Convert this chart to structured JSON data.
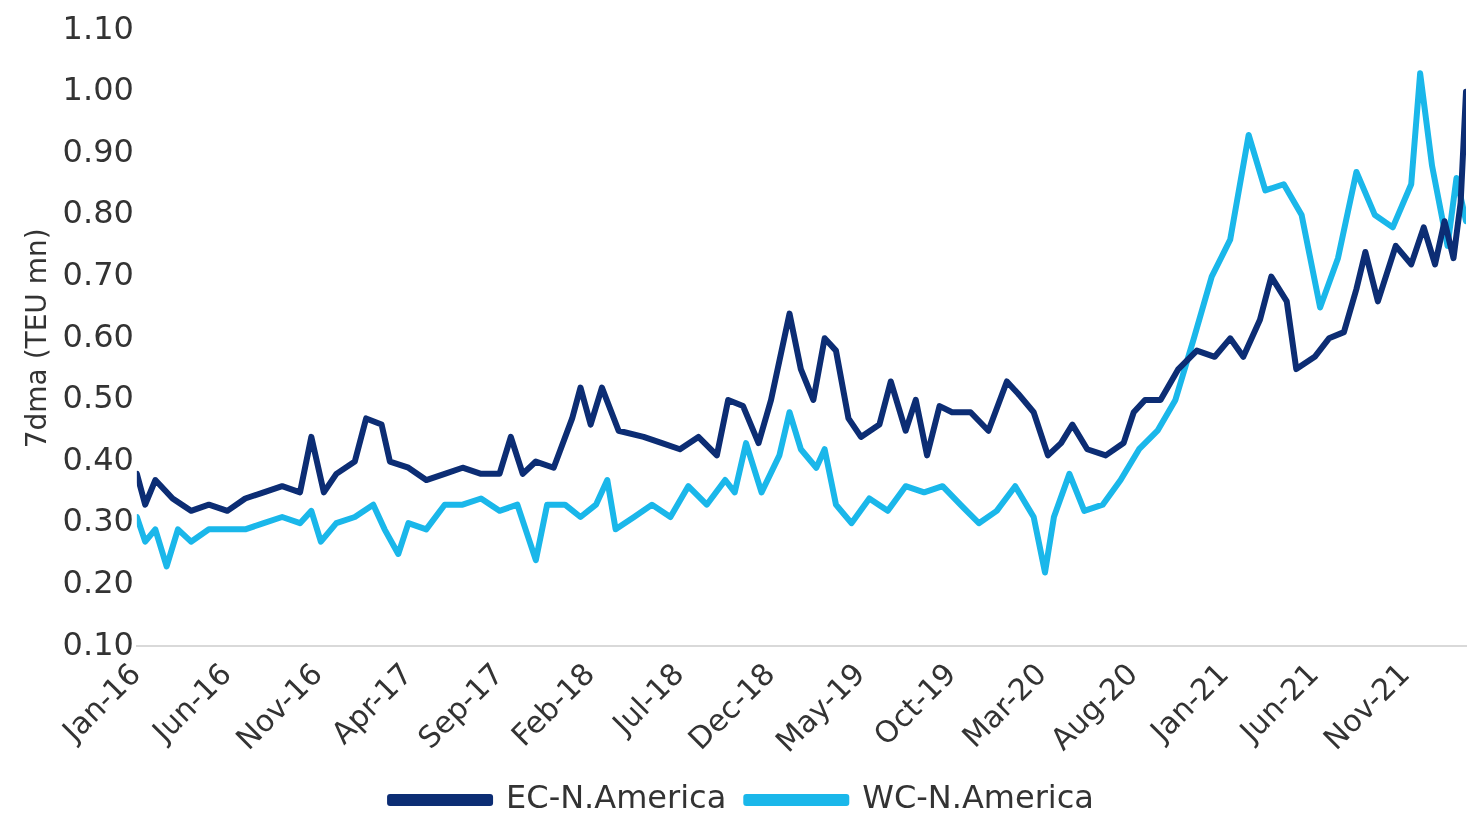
{
  "chart_data": {
    "type": "line",
    "ylabel": "7dma (TEU mn)",
    "legend": "bottom",
    "grid": false,
    "marker": "none",
    "line_style": "solid",
    "xlim": [
      "2016-01-01",
      "2022-02-10"
    ],
    "ylim": [
      0.1,
      1.1
    ],
    "yticks": [
      {
        "value": 0.1,
        "label": "0.10"
      },
      {
        "value": 0.2,
        "label": "0.20"
      },
      {
        "value": 0.3,
        "label": "0.30"
      },
      {
        "value": 0.4,
        "label": "0.40"
      },
      {
        "value": 0.5,
        "label": "0.50"
      },
      {
        "value": 0.6,
        "label": "0.60"
      },
      {
        "value": 0.7,
        "label": "0.70"
      },
      {
        "value": 0.8,
        "label": "0.80"
      },
      {
        "value": 0.9,
        "label": "0.90"
      },
      {
        "value": 1.0,
        "label": "1.00"
      },
      {
        "value": 1.1,
        "label": "1.10"
      }
    ],
    "xticks": [
      {
        "value": "2016-01",
        "label": "Jan-16"
      },
      {
        "value": "2016-06",
        "label": "Jun-16"
      },
      {
        "value": "2016-11",
        "label": "Nov-16"
      },
      {
        "value": "2017-04",
        "label": "Apr-17"
      },
      {
        "value": "2017-09",
        "label": "Sep-17"
      },
      {
        "value": "2018-02",
        "label": "Feb-18"
      },
      {
        "value": "2018-07",
        "label": "Jul-18"
      },
      {
        "value": "2018-12",
        "label": "Dec-18"
      },
      {
        "value": "2019-05",
        "label": "May-19"
      },
      {
        "value": "2019-10",
        "label": "Oct-19"
      },
      {
        "value": "2020-03",
        "label": "Mar-20"
      },
      {
        "value": "2020-08",
        "label": "Aug-20"
      },
      {
        "value": "2021-01",
        "label": "Jan-21"
      },
      {
        "value": "2021-06",
        "label": "Jun-21"
      },
      {
        "value": "2021-11",
        "label": "Nov-21"
      }
    ],
    "series": [
      {
        "name": "EC-N.America",
        "color": "#0c2d74",
        "x": [
          "2016-01-01",
          "2016-01-15",
          "2016-02-01",
          "2016-03-01",
          "2016-04-01",
          "2016-05-01",
          "2016-06-01",
          "2016-07-01",
          "2016-08-01",
          "2016-09-01",
          "2016-10-01",
          "2016-10-20",
          "2016-11-10",
          "2016-12-01",
          "2017-01-01",
          "2017-01-20",
          "2017-02-15",
          "2017-03-01",
          "2017-04-01",
          "2017-05-01",
          "2017-06-01",
          "2017-07-01",
          "2017-08-01",
          "2017-09-01",
          "2017-09-20",
          "2017-10-10",
          "2017-11-01",
          "2017-12-01",
          "2018-01-01",
          "2018-01-15",
          "2018-02-01",
          "2018-02-20",
          "2018-03-20",
          "2018-05-01",
          "2018-06-01",
          "2018-07-01",
          "2018-08-01",
          "2018-09-01",
          "2018-09-20",
          "2018-10-15",
          "2018-11-10",
          "2018-12-01",
          "2019-01-01",
          "2019-01-20",
          "2019-02-10",
          "2019-03-01",
          "2019-03-20",
          "2019-04-10",
          "2019-05-01",
          "2019-06-01",
          "2019-06-20",
          "2019-07-15",
          "2019-08-01",
          "2019-08-20",
          "2019-09-10",
          "2019-10-01",
          "2019-11-01",
          "2019-12-01",
          "2020-01-01",
          "2020-01-20",
          "2020-02-15",
          "2020-03-10",
          "2020-04-01",
          "2020-04-20",
          "2020-05-15",
          "2020-06-15",
          "2020-07-15",
          "2020-08-01",
          "2020-08-20",
          "2020-09-15",
          "2020-10-15",
          "2020-11-15",
          "2020-12-15",
          "2021-01-10",
          "2021-02-01",
          "2021-03-01",
          "2021-03-20",
          "2021-04-15",
          "2021-05-01",
          "2021-06-01",
          "2021-06-25",
          "2021-07-20",
          "2021-08-10",
          "2021-08-25",
          "2021-09-15",
          "2021-10-15",
          "2021-11-10",
          "2021-12-01",
          "2021-12-20",
          "2022-01-05",
          "2022-01-20",
          "2022-02-01",
          "2022-02-10"
        ],
        "values": [
          0.38,
          0.33,
          0.37,
          0.34,
          0.32,
          0.33,
          0.32,
          0.34,
          0.35,
          0.36,
          0.35,
          0.44,
          0.35,
          0.38,
          0.4,
          0.47,
          0.46,
          0.4,
          0.39,
          0.37,
          0.38,
          0.39,
          0.38,
          0.38,
          0.44,
          0.38,
          0.4,
          0.39,
          0.47,
          0.52,
          0.46,
          0.52,
          0.45,
          0.44,
          0.43,
          0.42,
          0.44,
          0.41,
          0.5,
          0.49,
          0.43,
          0.5,
          0.64,
          0.55,
          0.5,
          0.6,
          0.58,
          0.47,
          0.44,
          0.46,
          0.53,
          0.45,
          0.5,
          0.41,
          0.49,
          0.48,
          0.48,
          0.45,
          0.53,
          0.51,
          0.48,
          0.41,
          0.43,
          0.46,
          0.42,
          0.41,
          0.43,
          0.48,
          0.5,
          0.5,
          0.55,
          0.58,
          0.57,
          0.6,
          0.57,
          0.63,
          0.7,
          0.66,
          0.55,
          0.57,
          0.6,
          0.61,
          0.68,
          0.74,
          0.66,
          0.75,
          0.72,
          0.78,
          0.72,
          0.79,
          0.73,
          0.82,
          1.0
        ]
      },
      {
        "name": "WC-N.America",
        "color": "#1ab7ea",
        "x": [
          "2016-01-01",
          "2016-01-15",
          "2016-02-01",
          "2016-02-20",
          "2016-03-10",
          "2016-04-01",
          "2016-05-01",
          "2016-06-01",
          "2016-07-01",
          "2016-08-01",
          "2016-09-01",
          "2016-10-01",
          "2016-10-20",
          "2016-11-05",
          "2016-12-01",
          "2017-01-01",
          "2017-02-01",
          "2017-02-20",
          "2017-03-15",
          "2017-04-01",
          "2017-05-01",
          "2017-06-01",
          "2017-07-01",
          "2017-08-01",
          "2017-09-01",
          "2017-10-01",
          "2017-11-01",
          "2017-11-20",
          "2017-12-20",
          "2018-01-15",
          "2018-02-10",
          "2018-03-01",
          "2018-03-15",
          "2018-04-15",
          "2018-05-15",
          "2018-06-15",
          "2018-07-15",
          "2018-08-15",
          "2018-09-15",
          "2018-10-01",
          "2018-10-20",
          "2018-11-15",
          "2018-12-15",
          "2019-01-01",
          "2019-01-20",
          "2019-02-15",
          "2019-03-01",
          "2019-03-20",
          "2019-04-15",
          "2019-05-15",
          "2019-06-15",
          "2019-07-15",
          "2019-08-15",
          "2019-09-15",
          "2019-10-15",
          "2019-11-15",
          "2019-12-15",
          "2020-01-15",
          "2020-02-15",
          "2020-03-05",
          "2020-03-20",
          "2020-04-15",
          "2020-05-10",
          "2020-06-10",
          "2020-07-10",
          "2020-08-10",
          "2020-09-10",
          "2020-10-10",
          "2020-11-10",
          "2020-12-10",
          "2021-01-10",
          "2021-02-10",
          "2021-03-10",
          "2021-04-10",
          "2021-05-10",
          "2021-06-10",
          "2021-07-10",
          "2021-08-10",
          "2021-09-10",
          "2021-10-10",
          "2021-11-10",
          "2021-11-25",
          "2021-12-15",
          "2022-01-10",
          "2022-01-25",
          "2022-02-10"
        ],
        "values": [
          0.31,
          0.27,
          0.29,
          0.23,
          0.29,
          0.27,
          0.29,
          0.29,
          0.29,
          0.3,
          0.31,
          0.3,
          0.32,
          0.27,
          0.3,
          0.31,
          0.33,
          0.29,
          0.25,
          0.3,
          0.29,
          0.33,
          0.33,
          0.34,
          0.32,
          0.33,
          0.24,
          0.33,
          0.33,
          0.31,
          0.33,
          0.37,
          0.29,
          0.31,
          0.33,
          0.31,
          0.36,
          0.33,
          0.37,
          0.35,
          0.43,
          0.35,
          0.41,
          0.48,
          0.42,
          0.39,
          0.42,
          0.33,
          0.3,
          0.34,
          0.32,
          0.36,
          0.35,
          0.36,
          0.33,
          0.3,
          0.32,
          0.36,
          0.31,
          0.22,
          0.31,
          0.38,
          0.32,
          0.33,
          0.37,
          0.42,
          0.45,
          0.5,
          0.6,
          0.7,
          0.76,
          0.93,
          0.84,
          0.85,
          0.8,
          0.65,
          0.73,
          0.87,
          0.8,
          0.78,
          0.85,
          1.03,
          0.88,
          0.75,
          0.86,
          0.79
        ]
      }
    ]
  }
}
